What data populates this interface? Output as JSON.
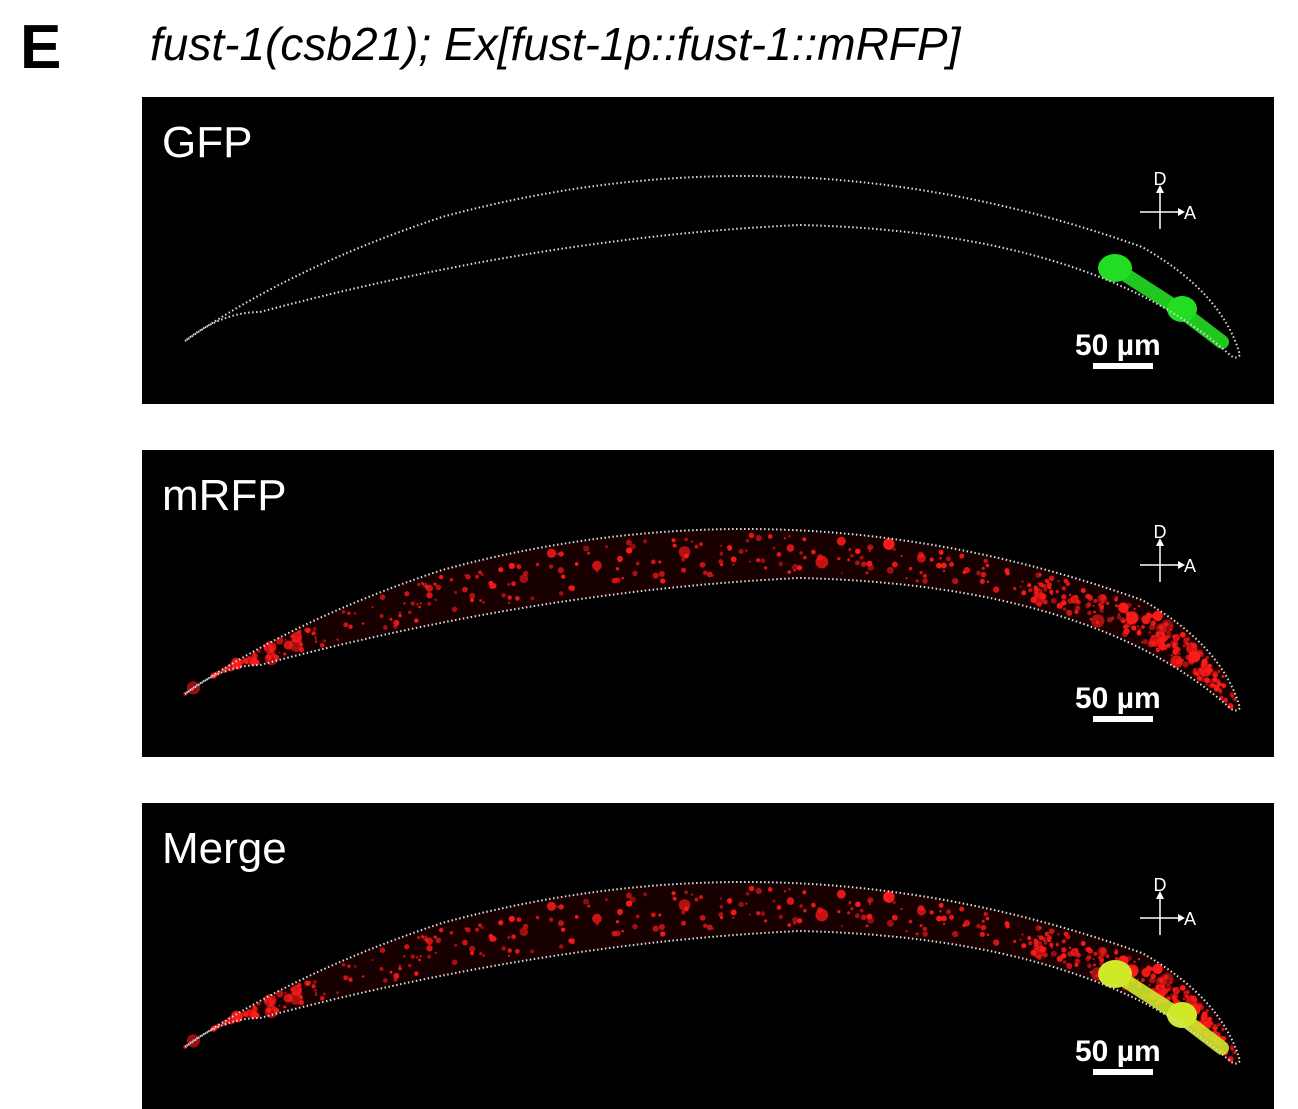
{
  "figure": {
    "panel_letter": "E",
    "title": "fust-1(csb21); Ex[fust-1p::fust-1::mRFP]",
    "orientation": {
      "dorsal": "D",
      "anterior": "A"
    },
    "panels": [
      {
        "label": "GFP",
        "scale_bar": "50 µm"
      },
      {
        "label": "mRFP",
        "scale_bar": "50 µm"
      },
      {
        "label": "Merge",
        "scale_bar": "50 µm"
      }
    ]
  }
}
